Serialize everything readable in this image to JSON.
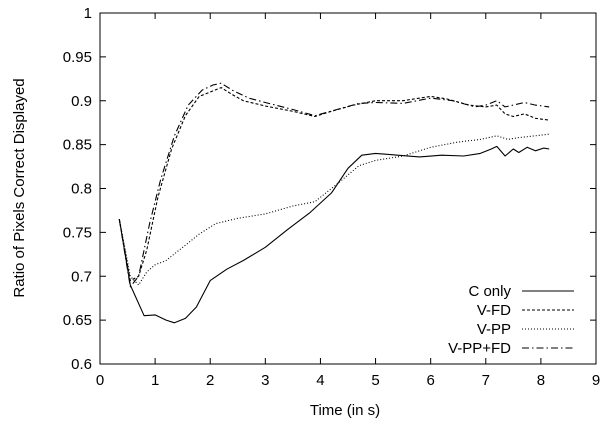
{
  "chart_data": {
    "type": "line",
    "xlabel": "Time (in s)",
    "ylabel": "Ratio of Pixels Correct Displayed",
    "xlim": [
      0,
      9
    ],
    "ylim": [
      0.6,
      1
    ],
    "xticks": [
      0,
      1,
      2,
      3,
      4,
      5,
      6,
      7,
      8,
      9
    ],
    "yticks": [
      0.6,
      0.65,
      0.7,
      0.75,
      0.8,
      0.85,
      0.9,
      0.95,
      1
    ],
    "grid": false,
    "legend_position": "bottom-right",
    "series": [
      {
        "name": "C only",
        "style": "solid",
        "points": [
          [
            0.35,
            0.765
          ],
          [
            0.55,
            0.69
          ],
          [
            0.8,
            0.655
          ],
          [
            1.0,
            0.656
          ],
          [
            1.2,
            0.65
          ],
          [
            1.35,
            0.647
          ],
          [
            1.55,
            0.652
          ],
          [
            1.75,
            0.665
          ],
          [
            2.0,
            0.695
          ],
          [
            2.3,
            0.708
          ],
          [
            2.6,
            0.718
          ],
          [
            3.0,
            0.733
          ],
          [
            3.4,
            0.753
          ],
          [
            3.8,
            0.772
          ],
          [
            4.2,
            0.795
          ],
          [
            4.5,
            0.823
          ],
          [
            4.75,
            0.838
          ],
          [
            5.0,
            0.84
          ],
          [
            5.4,
            0.838
          ],
          [
            5.8,
            0.836
          ],
          [
            6.2,
            0.838
          ],
          [
            6.6,
            0.837
          ],
          [
            6.9,
            0.84
          ],
          [
            7.1,
            0.845
          ],
          [
            7.2,
            0.848
          ],
          [
            7.35,
            0.837
          ],
          [
            7.5,
            0.845
          ],
          [
            7.6,
            0.841
          ],
          [
            7.75,
            0.847
          ],
          [
            7.9,
            0.843
          ],
          [
            8.05,
            0.846
          ],
          [
            8.15,
            0.845
          ]
        ]
      },
      {
        "name": "V-FD",
        "style": "dashed",
        "points": [
          [
            0.35,
            0.765
          ],
          [
            0.55,
            0.695
          ],
          [
            0.7,
            0.7
          ],
          [
            0.85,
            0.73
          ],
          [
            1.05,
            0.79
          ],
          [
            1.3,
            0.845
          ],
          [
            1.55,
            0.883
          ],
          [
            1.8,
            0.905
          ],
          [
            2.0,
            0.91
          ],
          [
            2.2,
            0.915
          ],
          [
            2.4,
            0.907
          ],
          [
            2.6,
            0.9
          ],
          [
            3.0,
            0.894
          ],
          [
            3.5,
            0.888
          ],
          [
            3.9,
            0.882
          ],
          [
            4.2,
            0.888
          ],
          [
            4.6,
            0.895
          ],
          [
            5.0,
            0.9
          ],
          [
            5.5,
            0.9
          ],
          [
            6.0,
            0.905
          ],
          [
            6.3,
            0.902
          ],
          [
            6.7,
            0.895
          ],
          [
            7.0,
            0.893
          ],
          [
            7.2,
            0.895
          ],
          [
            7.35,
            0.885
          ],
          [
            7.5,
            0.882
          ],
          [
            7.7,
            0.885
          ],
          [
            7.9,
            0.88
          ],
          [
            8.15,
            0.878
          ]
        ]
      },
      {
        "name": "V-PP",
        "style": "dotted",
        "points": [
          [
            0.35,
            0.765
          ],
          [
            0.55,
            0.7
          ],
          [
            0.7,
            0.69
          ],
          [
            0.85,
            0.705
          ],
          [
            1.0,
            0.713
          ],
          [
            1.2,
            0.718
          ],
          [
            1.5,
            0.733
          ],
          [
            1.8,
            0.748
          ],
          [
            2.1,
            0.76
          ],
          [
            2.5,
            0.766
          ],
          [
            3.0,
            0.771
          ],
          [
            3.5,
            0.78
          ],
          [
            3.9,
            0.785
          ],
          [
            4.3,
            0.805
          ],
          [
            4.7,
            0.826
          ],
          [
            5.0,
            0.832
          ],
          [
            5.5,
            0.837
          ],
          [
            6.0,
            0.847
          ],
          [
            6.5,
            0.853
          ],
          [
            6.9,
            0.856
          ],
          [
            7.2,
            0.86
          ],
          [
            7.4,
            0.856
          ],
          [
            7.6,
            0.858
          ],
          [
            7.9,
            0.86
          ],
          [
            8.15,
            0.862
          ]
        ]
      },
      {
        "name": "V-PP+FD",
        "style": "dash-dot",
        "points": [
          [
            0.35,
            0.765
          ],
          [
            0.55,
            0.688
          ],
          [
            0.7,
            0.7
          ],
          [
            0.9,
            0.76
          ],
          [
            1.1,
            0.81
          ],
          [
            1.35,
            0.86
          ],
          [
            1.6,
            0.895
          ],
          [
            1.85,
            0.912
          ],
          [
            2.05,
            0.918
          ],
          [
            2.2,
            0.92
          ],
          [
            2.4,
            0.912
          ],
          [
            2.7,
            0.903
          ],
          [
            3.0,
            0.898
          ],
          [
            3.5,
            0.89
          ],
          [
            3.9,
            0.883
          ],
          [
            4.3,
            0.89
          ],
          [
            4.7,
            0.897
          ],
          [
            5.0,
            0.898
          ],
          [
            5.5,
            0.897
          ],
          [
            6.0,
            0.903
          ],
          [
            6.4,
            0.9
          ],
          [
            6.8,
            0.893
          ],
          [
            7.0,
            0.895
          ],
          [
            7.2,
            0.9
          ],
          [
            7.35,
            0.893
          ],
          [
            7.5,
            0.895
          ],
          [
            7.7,
            0.898
          ],
          [
            7.9,
            0.895
          ],
          [
            8.15,
            0.893
          ]
        ]
      }
    ]
  }
}
